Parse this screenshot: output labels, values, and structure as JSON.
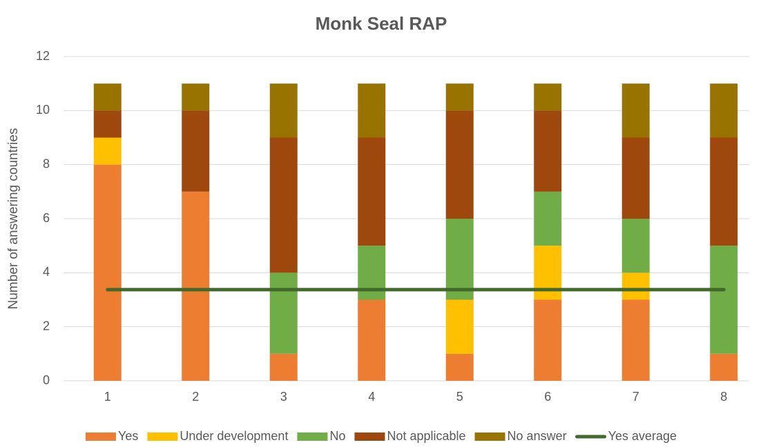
{
  "chart_data": {
    "type": "bar",
    "stacked": true,
    "title": "Monk Seal RAP",
    "y_label": "Number of answering countries",
    "categories": [
      "1",
      "2",
      "3",
      "4",
      "5",
      "6",
      "7",
      "8"
    ],
    "series": [
      {
        "name": "Yes",
        "color": "#ed7d31",
        "values": [
          8,
          7,
          1,
          3,
          1,
          3,
          3,
          1
        ]
      },
      {
        "name": "Under development",
        "color": "#ffc000",
        "values": [
          1,
          0,
          0,
          0,
          2,
          2,
          1,
          0
        ]
      },
      {
        "name": "No",
        "color": "#70ad47",
        "values": [
          0,
          0,
          3,
          2,
          3,
          2,
          2,
          4
        ]
      },
      {
        "name": "Not applicable",
        "color": "#9e480e",
        "values": [
          1,
          3,
          5,
          4,
          4,
          3,
          3,
          4
        ]
      },
      {
        "name": "No answer",
        "color": "#997300",
        "values": [
          1,
          1,
          2,
          2,
          1,
          1,
          2,
          2
        ]
      },
      {
        "name": "Yes average",
        "color": "#43682b",
        "type": "line",
        "values": [
          3.375,
          3.375,
          3.375,
          3.375,
          3.375,
          3.375,
          3.375,
          3.375
        ]
      }
    ],
    "ylim": [
      0,
      12
    ],
    "yticks": [
      0,
      2,
      4,
      6,
      8,
      10,
      12
    ],
    "grid": true,
    "legend": "bottom"
  }
}
